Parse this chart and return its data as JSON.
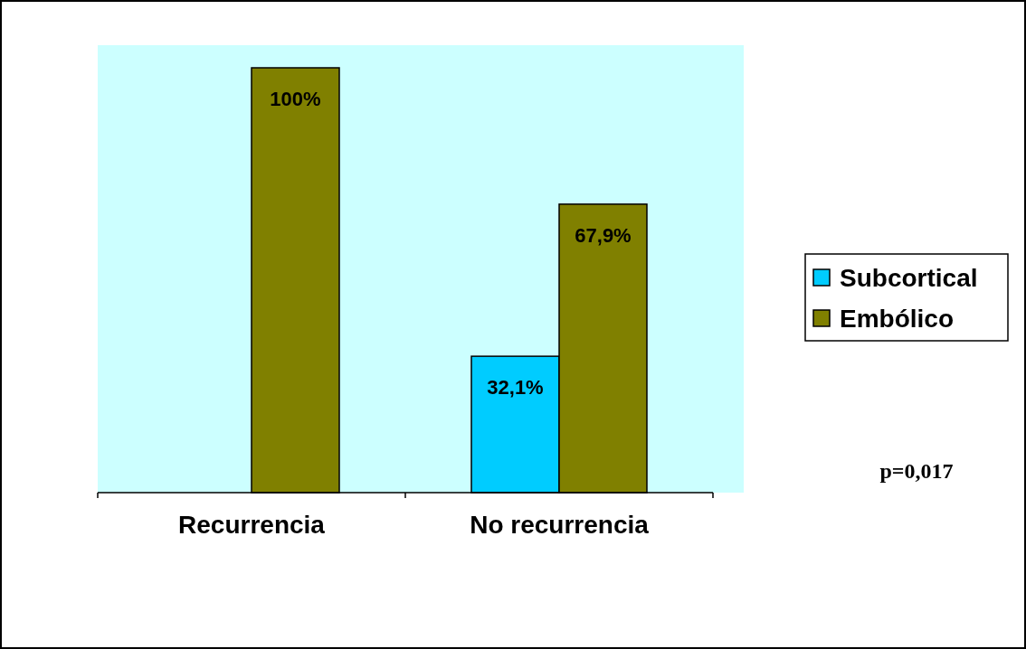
{
  "chart_data": {
    "type": "bar",
    "categories": [
      "Recurrencia",
      "No recurrencia"
    ],
    "series": [
      {
        "name": "Subcortical",
        "color": "#00ccff",
        "values": [
          0,
          32.1
        ],
        "value_labels": [
          null,
          "32,1%"
        ]
      },
      {
        "name": "Embólico",
        "color": "#808000",
        "values": [
          100,
          67.9
        ],
        "value_labels": [
          "100%",
          "67,9%"
        ]
      }
    ],
    "relative": false,
    "legend": "right",
    "annotations": [
      "p=0,017"
    ]
  }
}
